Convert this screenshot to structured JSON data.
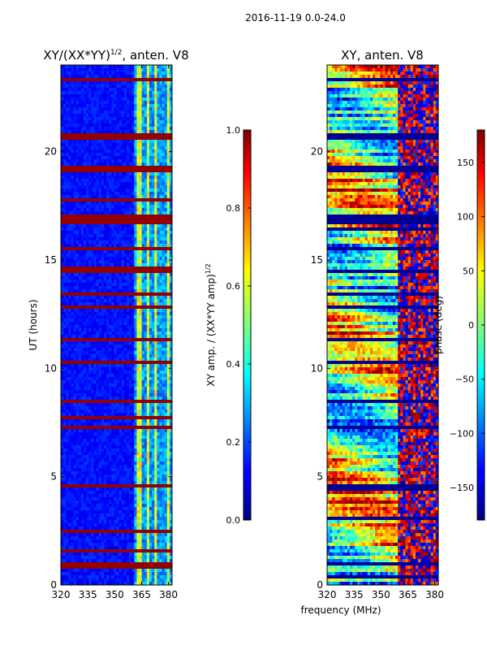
{
  "figure": {
    "suptitle": "2016-11-19 0.0-24.0",
    "shared_xlabel": "frequency (MHz)"
  },
  "chart_data": [
    {
      "type": "heatmap",
      "title_text": "XY/(XX*YY)",
      "title_exponent": "1/2",
      "title_suffix": ", anten. V8",
      "xlabel": "",
      "ylabel": "UT (hours)",
      "xlim": [
        320,
        382
      ],
      "ylim": [
        0,
        24
      ],
      "xticks": [
        320,
        335,
        350,
        365,
        380
      ],
      "yticks": [
        0,
        5,
        10,
        15,
        20
      ],
      "colormap": "jet",
      "colorbar": {
        "label_text": "XY amp. / (XX*YY amp)",
        "label_exponent": "1/2",
        "vmin": 0.0,
        "vmax": 1.0,
        "ticks": [
          "0.0",
          "0.2",
          "0.4",
          "0.6",
          "0.8",
          "1.0"
        ]
      },
      "flagged_bands_hours": [
        [
          0.0,
          0.05
        ],
        [
          0.8,
          1.05
        ],
        [
          1.5,
          1.7
        ],
        [
          2.35,
          2.5
        ],
        [
          4.45,
          4.65
        ],
        [
          5.95,
          6.05
        ],
        [
          7.2,
          7.35
        ],
        [
          7.6,
          7.8
        ],
        [
          8.35,
          8.55
        ],
        [
          10.15,
          10.3
        ],
        [
          11.3,
          11.4
        ],
        [
          12.75,
          12.9
        ],
        [
          13.35,
          13.5
        ],
        [
          14.4,
          14.7
        ],
        [
          15.5,
          15.65
        ],
        [
          16.45,
          16.55
        ],
        [
          16.65,
          17.1
        ],
        [
          17.7,
          17.8
        ],
        [
          19.0,
          19.4
        ],
        [
          20.55,
          20.9
        ],
        [
          22.6,
          22.7
        ],
        [
          22.9,
          23.0
        ],
        [
          23.3,
          23.4
        ]
      ],
      "bright_channels_mhz": [
        [
          362.5,
          365.5
        ],
        [
          368,
          370
        ],
        [
          372.5,
          373.8
        ],
        [
          376,
          377
        ],
        [
          379,
          380.5
        ]
      ]
    },
    {
      "type": "heatmap",
      "title_text": "XY, anten. V8",
      "xlabel": "frequency (MHz)",
      "ylabel": "",
      "xlim": [
        320,
        382
      ],
      "ylim": [
        0,
        24
      ],
      "xticks": [
        320,
        335,
        350,
        365,
        380
      ],
      "yticks": [
        0,
        5,
        10,
        15,
        20
      ],
      "colormap": "jet",
      "colorbar": {
        "label_text": "phase (deg)",
        "vmin": -180,
        "vmax": 180,
        "ticks": [
          "−150",
          "−100",
          "−50",
          "0",
          "50",
          "100",
          "150"
        ]
      },
      "flagged_bands_hours": [
        [
          0.35,
          0.45
        ],
        [
          0.95,
          1.05
        ],
        [
          1.9,
          2.0
        ],
        [
          3.0,
          3.1
        ],
        [
          4.4,
          4.6
        ],
        [
          5.95,
          6.05
        ],
        [
          7.25,
          7.35
        ],
        [
          8.4,
          8.5
        ],
        [
          10.2,
          10.3
        ],
        [
          11.3,
          11.4
        ],
        [
          12.8,
          12.9
        ],
        [
          13.4,
          13.5
        ],
        [
          14.4,
          14.6
        ],
        [
          15.5,
          15.6
        ],
        [
          16.4,
          16.5
        ],
        [
          16.7,
          17.1
        ],
        [
          18.4,
          18.5
        ],
        [
          19.1,
          19.4
        ],
        [
          20.6,
          20.9
        ],
        [
          22.0,
          22.1
        ],
        [
          23.3,
          23.4
        ]
      ]
    }
  ]
}
